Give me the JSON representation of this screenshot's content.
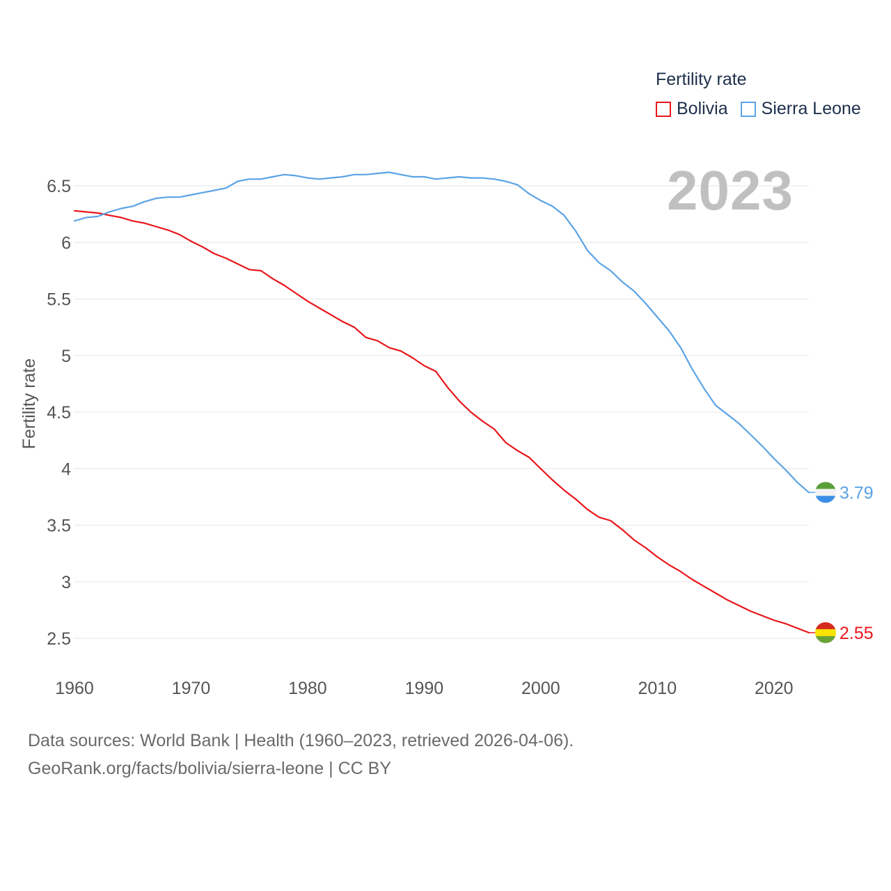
{
  "legend": {
    "title": "Fertility rate",
    "items": [
      {
        "label": "Bolivia",
        "color": "#e8161b"
      },
      {
        "label": "Sierra Leone",
        "color": "#5ba3e6"
      }
    ]
  },
  "year_label": "2023",
  "footer": {
    "line1": "Data sources: World Bank | Health (1960–2023, retrieved 2026-04-06).",
    "line2": "GeoRank.org/facts/bolivia/sierra-leone | CC BY"
  },
  "chart_data": {
    "type": "line",
    "title": "Fertility rate",
    "xlabel": "",
    "ylabel": "Fertility rate",
    "xlim": [
      1960,
      2023
    ],
    "ylim": [
      2.5,
      6.5
    ],
    "x_ticks": [
      1960,
      1970,
      1980,
      1990,
      2000,
      2010,
      2020
    ],
    "y_ticks": [
      2.5,
      3,
      3.5,
      4,
      4.5,
      5,
      5.5,
      6,
      6.5
    ],
    "y_tick_labels": [
      "2.5",
      "3",
      "3.5",
      "4",
      "4.5",
      "5",
      "5.5",
      "6",
      "6.5"
    ],
    "grid": true,
    "series": [
      {
        "name": "Bolivia",
        "color": "#e8161b",
        "end_label": "2.55",
        "flag_colors": [
          "#d52b1e",
          "#f9e300",
          "#6aa23a"
        ],
        "x": [
          1960,
          1961,
          1962,
          1963,
          1964,
          1965,
          1966,
          1967,
          1968,
          1969,
          1970,
          1971,
          1972,
          1973,
          1974,
          1975,
          1976,
          1977,
          1978,
          1979,
          1980,
          1981,
          1982,
          1983,
          1984,
          1985,
          1986,
          1987,
          1988,
          1989,
          1990,
          1991,
          1992,
          1993,
          1994,
          1995,
          1996,
          1997,
          1998,
          1999,
          2000,
          2001,
          2002,
          2003,
          2004,
          2005,
          2006,
          2007,
          2008,
          2009,
          2010,
          2011,
          2012,
          2013,
          2014,
          2015,
          2016,
          2017,
          2018,
          2019,
          2020,
          2021,
          2022,
          2023
        ],
        "values": [
          6.28,
          6.27,
          6.26,
          6.24,
          6.22,
          6.19,
          6.17,
          6.14,
          6.11,
          6.07,
          6.01,
          5.96,
          5.9,
          5.86,
          5.81,
          5.76,
          5.75,
          5.68,
          5.62,
          5.55,
          5.48,
          5.42,
          5.36,
          5.3,
          5.25,
          5.16,
          5.13,
          5.07,
          5.04,
          4.98,
          4.91,
          4.86,
          4.72,
          4.6,
          4.5,
          4.42,
          4.35,
          4.23,
          4.16,
          4.1,
          4.0,
          3.9,
          3.81,
          3.73,
          3.64,
          3.57,
          3.54,
          3.46,
          3.37,
          3.3,
          3.22,
          3.15,
          3.09,
          3.02,
          2.96,
          2.9,
          2.84,
          2.79,
          2.74,
          2.7,
          2.66,
          2.63,
          2.59,
          2.55
        ]
      },
      {
        "name": "Sierra Leone",
        "color": "#5ba3e6",
        "end_label": "3.79",
        "flag_colors": [
          "#5aa03a",
          "#f2f2f2",
          "#3a8ee6"
        ],
        "x": [
          1960,
          1961,
          1962,
          1963,
          1964,
          1965,
          1966,
          1967,
          1968,
          1969,
          1970,
          1971,
          1972,
          1973,
          1974,
          1975,
          1976,
          1977,
          1978,
          1979,
          1980,
          1981,
          1982,
          1983,
          1984,
          1985,
          1986,
          1987,
          1988,
          1989,
          1990,
          1991,
          1992,
          1993,
          1994,
          1995,
          1996,
          1997,
          1998,
          1999,
          2000,
          2001,
          2002,
          2003,
          2004,
          2005,
          2006,
          2007,
          2008,
          2009,
          2010,
          2011,
          2012,
          2013,
          2014,
          2015,
          2016,
          2017,
          2018,
          2019,
          2020,
          2021,
          2022,
          2023
        ],
        "values": [
          6.19,
          6.22,
          6.23,
          6.27,
          6.3,
          6.32,
          6.36,
          6.39,
          6.4,
          6.4,
          6.42,
          6.44,
          6.46,
          6.48,
          6.54,
          6.56,
          6.56,
          6.58,
          6.6,
          6.59,
          6.57,
          6.56,
          6.57,
          6.58,
          6.6,
          6.6,
          6.61,
          6.62,
          6.6,
          6.58,
          6.58,
          6.56,
          6.57,
          6.58,
          6.57,
          6.57,
          6.56,
          6.54,
          6.51,
          6.43,
          6.37,
          6.32,
          6.24,
          6.1,
          5.93,
          5.82,
          5.75,
          5.65,
          5.57,
          5.46,
          5.34,
          5.22,
          5.07,
          4.88,
          4.71,
          4.56,
          4.48,
          4.4,
          4.3,
          4.2,
          4.09,
          3.99,
          3.88,
          3.79
        ]
      }
    ]
  }
}
